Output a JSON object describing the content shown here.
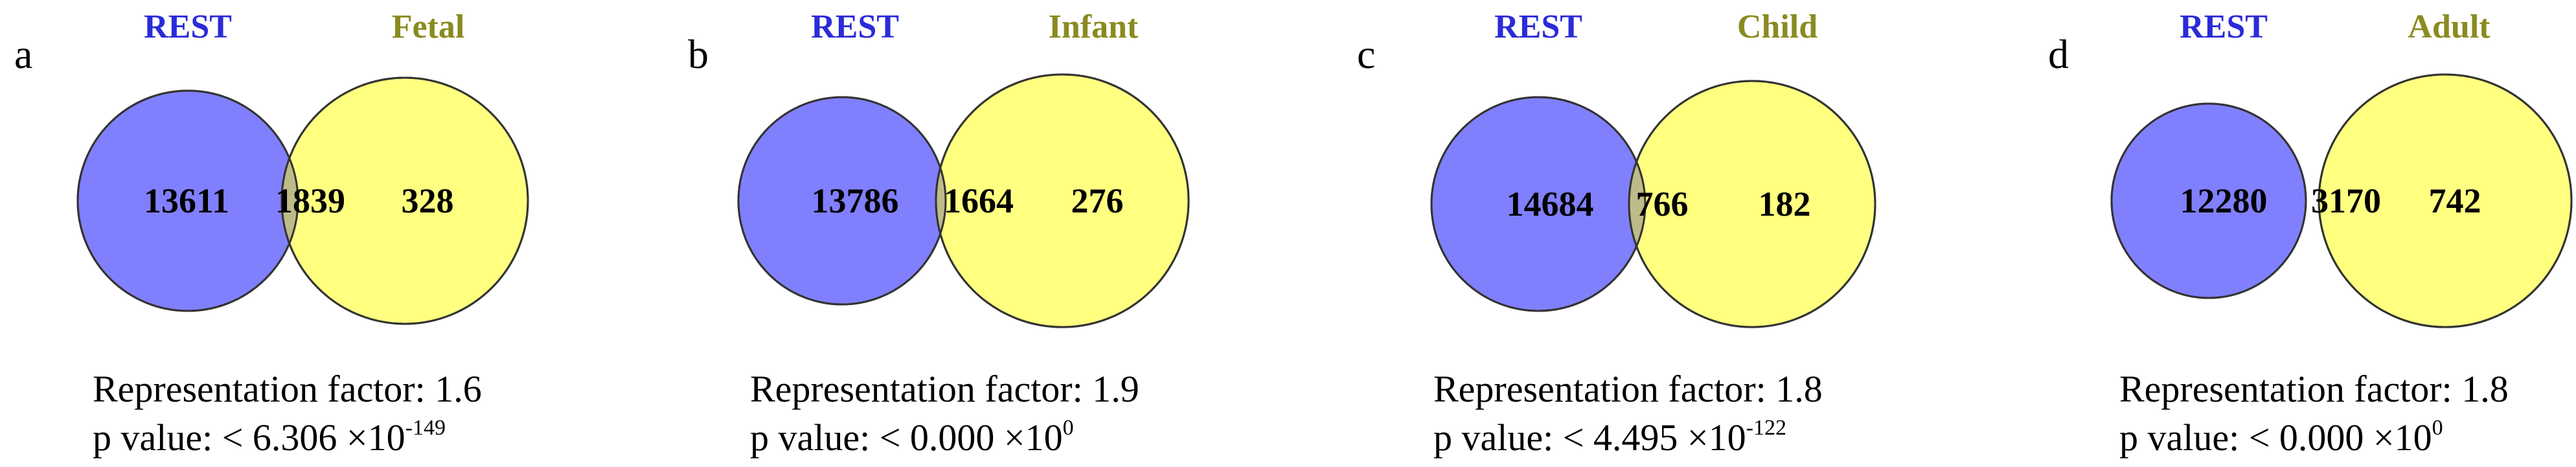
{
  "colors": {
    "left_circle": "#8080ff",
    "right_circle": "#ffff80",
    "overlap": "#bdbb88",
    "left_label": "#2b2bd9",
    "right_label": "#8a8a20",
    "outline": "#333333"
  },
  "panels": [
    {
      "letter": "a",
      "left_label": "REST",
      "right_label": "Fetal",
      "left_only": "13611",
      "overlap": "1839",
      "right_only": "328",
      "rep_factor": "Representation factor: 1.6",
      "p_value_prefix": "p value: < 6.306 ×10",
      "p_value_exp": "-149"
    },
    {
      "letter": "b",
      "left_label": "REST",
      "right_label": "Infant",
      "left_only": "13786",
      "overlap": "1664",
      "right_only": "276",
      "rep_factor": "Representation factor: 1.9",
      "p_value_prefix": "p value: < 0.000 ×10",
      "p_value_exp": "0"
    },
    {
      "letter": "c",
      "left_label": "REST",
      "right_label": "Child",
      "left_only": "14684",
      "overlap": "766",
      "right_only": "182",
      "rep_factor": "Representation factor: 1.8",
      "p_value_prefix": "p value: < 4.495 ×10",
      "p_value_exp": "-122"
    },
    {
      "letter": "d",
      "left_label": "REST",
      "right_label": "Adult",
      "left_only": "12280",
      "overlap": "3170",
      "right_only": "742",
      "rep_factor": "Representation factor: 1.8",
      "p_value_prefix": "p value: < 0.000 ×10",
      "p_value_exp": "0"
    }
  ]
}
